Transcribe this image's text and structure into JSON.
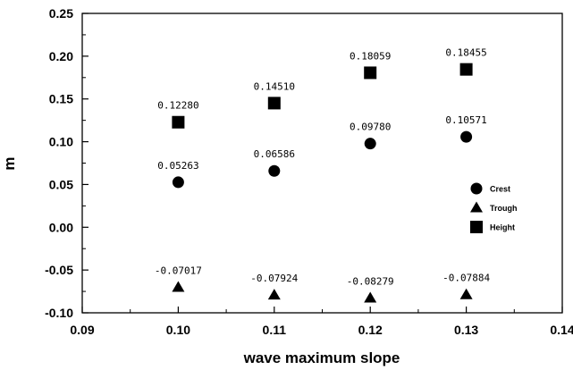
{
  "chart_data": {
    "type": "scatter",
    "xlabel": "wave maximum slope",
    "ylabel": "m",
    "xlim": [
      0.09,
      0.14
    ],
    "ylim": [
      -0.1,
      0.25
    ],
    "xticks": [
      "0.09",
      "0.10",
      "0.11",
      "0.12",
      "0.13",
      "0.14"
    ],
    "yticks": [
      "-0.10",
      "-0.05",
      "0.00",
      "0.05",
      "0.10",
      "0.15",
      "0.20",
      "0.25"
    ],
    "grid": false,
    "legend_position": "right",
    "x": [
      0.1,
      0.11,
      0.12,
      0.13
    ],
    "series": [
      {
        "name": "Crest",
        "marker": "circle",
        "values": [
          0.05263,
          0.06586,
          0.0978,
          0.10571
        ],
        "labels": [
          "0.05263",
          "0.06586",
          "0.09780",
          "0.10571"
        ]
      },
      {
        "name": "Trough",
        "marker": "triangle",
        "values": [
          -0.07017,
          -0.07924,
          -0.08279,
          -0.07884
        ],
        "labels": [
          "-0.07017",
          "-0.07924",
          "-0.08279",
          "-0.07884"
        ]
      },
      {
        "name": "Height",
        "marker": "square",
        "values": [
          0.1228,
          0.1451,
          0.18059,
          0.18455
        ],
        "labels": [
          "0.12280",
          "0.14510",
          "0.18059",
          "0.18455"
        ]
      }
    ]
  }
}
